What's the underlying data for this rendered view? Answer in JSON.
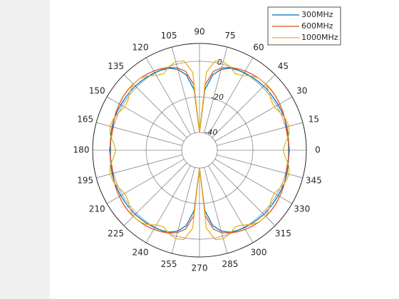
{
  "chart_data": {
    "type": "polar",
    "theta": [
      0,
      5,
      10,
      15,
      20,
      25,
      30,
      35,
      40,
      45,
      50,
      55,
      60,
      65,
      70,
      75,
      80,
      85,
      90,
      95,
      100,
      105,
      110,
      115,
      120,
      125,
      130,
      135,
      140,
      145,
      150,
      155,
      160,
      165,
      170,
      175,
      180,
      185,
      190,
      195,
      200,
      205,
      210,
      215,
      220,
      225,
      230,
      235,
      240,
      245,
      250,
      255,
      260,
      265,
      270,
      275,
      280,
      285,
      290,
      295,
      300,
      305,
      310,
      315,
      320,
      325,
      330,
      335,
      340,
      345,
      350,
      355
    ],
    "series": [
      {
        "name": "300MHz",
        "color": "#0072bd",
        "values": [
          0,
          0.2,
          0.5,
          0.8,
          1,
          1,
          1,
          1,
          1,
          1,
          0.8,
          0.6,
          0.3,
          -0.2,
          -1,
          -3,
          -7,
          -16,
          -40,
          -16,
          -7,
          -3,
          -1,
          -0.2,
          0.3,
          0.6,
          0.8,
          1,
          1,
          1,
          1,
          1,
          1,
          0.8,
          0.5,
          0.2,
          0,
          0.2,
          0.5,
          0.8,
          1,
          1,
          1,
          1,
          1,
          1,
          0.8,
          0.6,
          0.3,
          -0.2,
          -1,
          -3,
          -7,
          -16,
          -40,
          -16,
          -7,
          -3,
          -1,
          -0.2,
          0.3,
          0.6,
          0.8,
          1,
          1,
          1,
          1,
          1,
          1,
          0.8,
          0.5,
          0.2
        ]
      },
      {
        "name": "600MHz",
        "color": "#d95319",
        "values": [
          0.5,
          0.2,
          0,
          0.3,
          1,
          1.6,
          2,
          2.4,
          2.6,
          2.6,
          2.4,
          2,
          1.4,
          0.6,
          -0.5,
          -2,
          -5,
          -13,
          -40,
          -13,
          -5,
          -2,
          -0.5,
          0.6,
          1.4,
          2,
          2.4,
          2.6,
          2.6,
          2.4,
          2,
          1.6,
          1,
          0.3,
          0,
          0.2,
          0.5,
          0.2,
          0,
          0.3,
          1,
          1.6,
          2,
          2.4,
          2.6,
          2.6,
          2.4,
          2,
          1.4,
          0.6,
          -0.5,
          -2,
          -5,
          -13,
          -40,
          -13,
          -5,
          -2,
          -0.5,
          0.6,
          1.4,
          2,
          2.4,
          2.6,
          2.6,
          2.4,
          2,
          1.6,
          1,
          0.3,
          0,
          0.2
        ]
      },
      {
        "name": "1000MHz",
        "color": "#edb120",
        "values": [
          -3,
          -1.5,
          1,
          2,
          1.5,
          0,
          -1.5,
          -1,
          1,
          2.5,
          2.5,
          1,
          -1.5,
          -2.5,
          0,
          1.5,
          1,
          -6,
          -40,
          -6,
          1,
          1.5,
          0,
          -2.5,
          -1.5,
          1,
          2.5,
          2.5,
          1,
          -1,
          -1.5,
          0,
          1.5,
          2,
          1,
          -1.5,
          -3,
          -1.5,
          1,
          2,
          1.5,
          0,
          -1.5,
          -1,
          1,
          2.5,
          2.5,
          1,
          -1.5,
          -2.5,
          0,
          1.5,
          1,
          -6,
          -40,
          -6,
          1,
          1.5,
          0,
          -2.5,
          -1.5,
          1,
          2.5,
          2.5,
          1,
          -1,
          -1.5,
          0,
          1.5,
          2,
          1,
          -1.5
        ]
      }
    ],
    "rlim": [
      -50,
      10
    ],
    "rticks": [
      -40,
      -20,
      0
    ],
    "raxis_angle": 80,
    "thetaticks": [
      0,
      15,
      30,
      45,
      60,
      75,
      90,
      105,
      120,
      135,
      150,
      165,
      180,
      195,
      210,
      225,
      240,
      255,
      270,
      285,
      300,
      315,
      330,
      345
    ],
    "grid": true,
    "legend": "northeast"
  }
}
